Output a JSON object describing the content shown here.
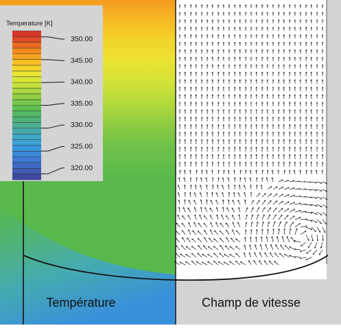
{
  "legend": {
    "title": "Temperature [K]",
    "ticks": [
      "350.00",
      "345.00",
      "340.00",
      "335.00",
      "330.00",
      "325.00",
      "320.00"
    ],
    "bands": [
      "#d8352b",
      "#e04a26",
      "#ec6a22",
      "#f28a20",
      "#f6a520",
      "#f7bf22",
      "#f2d528",
      "#e9e531",
      "#d9e637",
      "#c4e03b",
      "#aad83f",
      "#90d044",
      "#77c84a",
      "#5fbf53",
      "#54b865",
      "#4fb27a",
      "#4cae90",
      "#47abac",
      "#3fa8c4",
      "#3aa2d7",
      "#3996dd",
      "#3b88db",
      "#3c79d2",
      "#3e6ac6",
      "#4059b4",
      "#3f4a9d"
    ],
    "band_range": [
      318.7,
      351.3
    ]
  },
  "panels": {
    "temperature_label": "Température",
    "velocity_label": "Champ de vitesse"
  }
}
